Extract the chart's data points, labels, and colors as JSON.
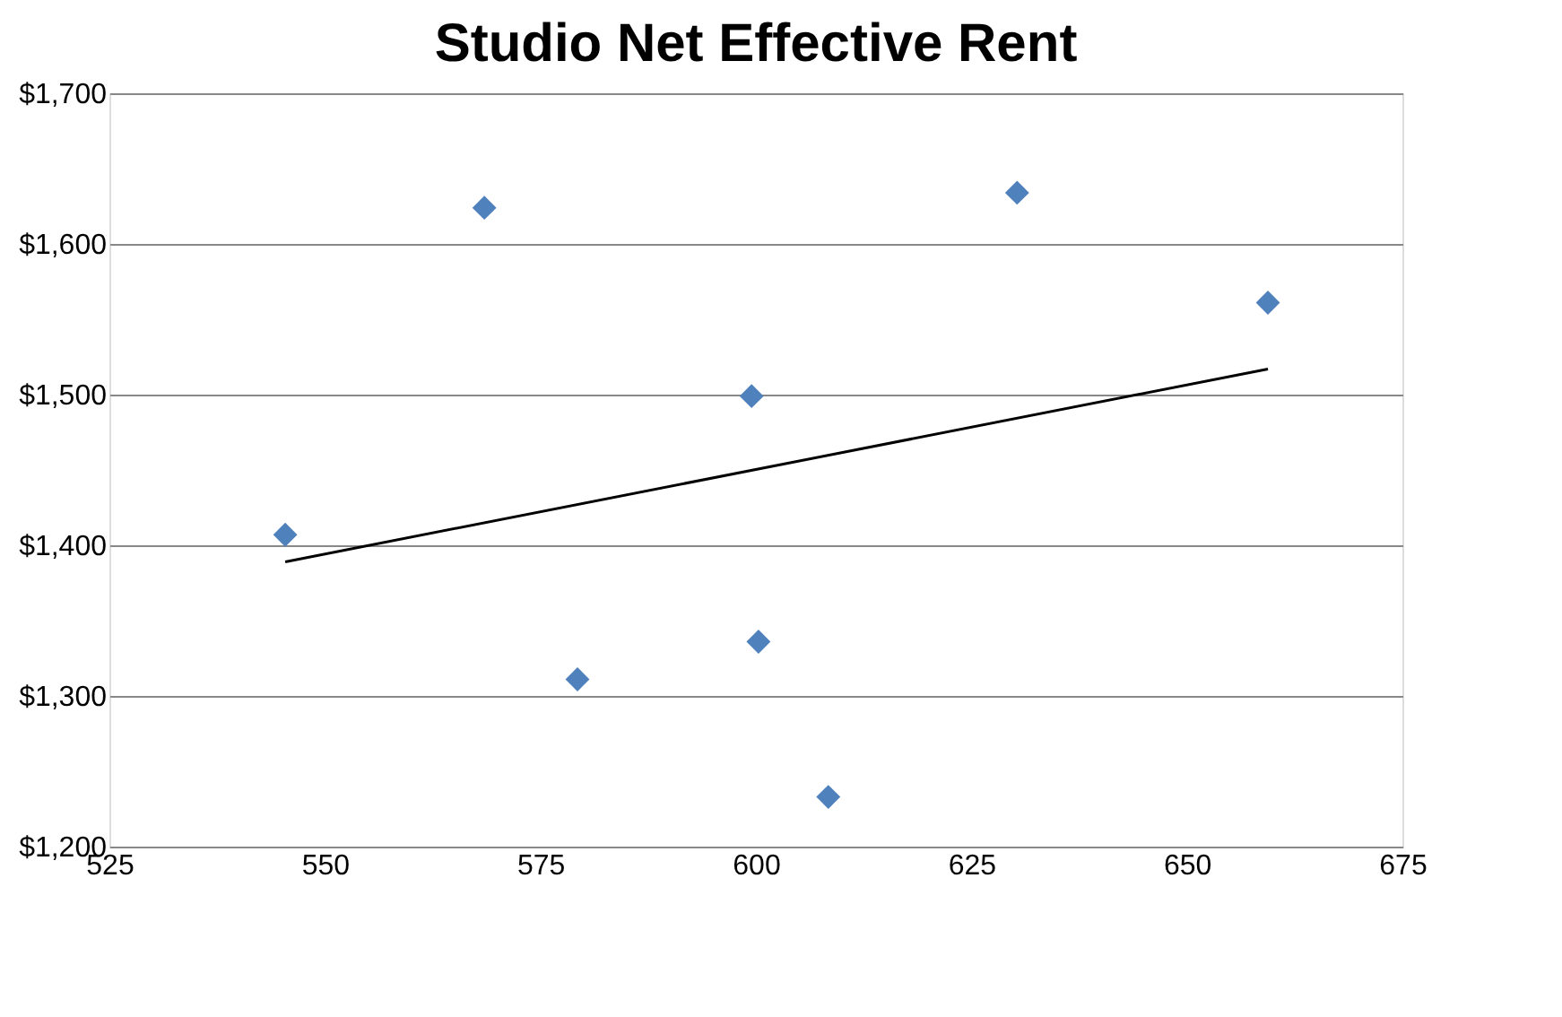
{
  "chart_data": {
    "type": "scatter",
    "title": "Studio Net Effective Rent",
    "marker": "diamond",
    "grid": "y",
    "xlim": [
      525,
      675
    ],
    "xticks": [
      525,
      550,
      575,
      600,
      625,
      650,
      675
    ],
    "ylim": [
      1200,
      1700
    ],
    "yticks": [
      {
        "value": 1200,
        "label": "$1,200"
      },
      {
        "value": 1300,
        "label": "$1,300"
      },
      {
        "value": 1400,
        "label": "$1,400"
      },
      {
        "value": 1500,
        "label": "$1,500"
      },
      {
        "value": 1600,
        "label": "$1,600"
      },
      {
        "value": 1700,
        "label": "$1,700"
      }
    ],
    "series": [
      {
        "type": "scatter",
        "color": "#4f81bd",
        "x": [
          545.4,
          568.5,
          579.3,
          599.5,
          600.3,
          608.4,
          630.3,
          659.4
        ],
        "values": [
          1407,
          1624,
          1311,
          1499,
          1336,
          1233,
          1634,
          1561
        ]
      },
      {
        "type": "line",
        "color": "#000000",
        "marker": "none",
        "line_style": "solid",
        "x": [
          545.4,
          659.4
        ],
        "values": [
          1389,
          1517
        ]
      }
    ]
  }
}
